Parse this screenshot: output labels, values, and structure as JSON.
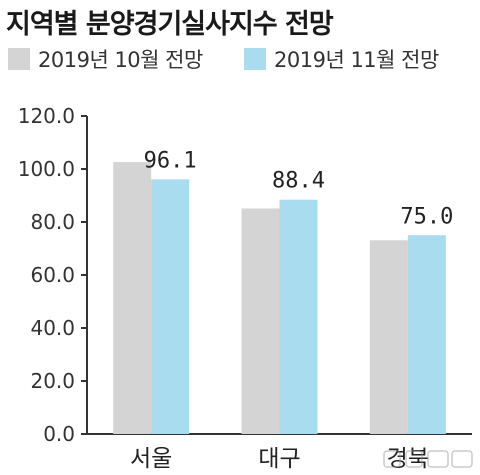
{
  "title": "지역별 분양경기실사지수 전망",
  "colors": {
    "oct": "#d4d4d4",
    "nov": "#a8dcee",
    "axis": "#333333",
    "text": "#222222"
  },
  "chart_data": {
    "type": "bar",
    "title": "지역별 분양경기실사지수 전망",
    "categories": [
      "서울",
      "대구",
      "경북"
    ],
    "series": [
      {
        "name": "2019년 10월 전망",
        "values": [
          102.6,
          85.1,
          73.1
        ]
      },
      {
        "name": "2019년 11월 전망",
        "values": [
          96.1,
          88.4,
          75.0
        ]
      }
    ],
    "data_labels": [
      "96.1",
      "88.4",
      "75.0"
    ],
    "yticks": [
      "0.0",
      "20.0",
      "40.0",
      "60.0",
      "80.0",
      "100.0",
      "120.0"
    ],
    "ylim": [
      0,
      120
    ],
    "xlabel": "",
    "ylabel": "",
    "legend_position": "top",
    "grid": false
  }
}
